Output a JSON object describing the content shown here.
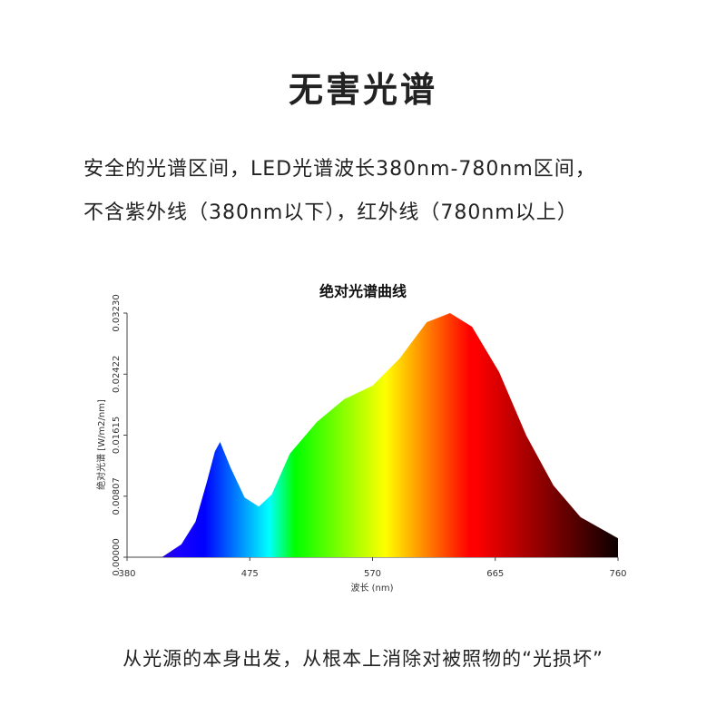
{
  "header": {
    "title": "无害光谱",
    "paragraph": [
      "安全的光谱区间，LED光谱波长380nm-780nm区间，",
      "不含紫外线（380nm以下），红外线（780nm以上）"
    ]
  },
  "chart_data": {
    "type": "area",
    "title": "绝对光谱曲线",
    "x_label": "波长 (nm)",
    "y_label": "绝对光谱 [W/m2/nm]",
    "x": [
      380,
      400,
      407,
      422,
      433,
      442,
      448,
      452,
      460,
      471,
      482,
      492,
      506,
      527,
      548,
      570,
      591,
      612,
      630,
      647,
      668,
      689,
      710,
      731,
      760
    ],
    "values": [
      0,
      0,
      0,
      0.0017,
      0.0047,
      0.0101,
      0.014,
      0.01525,
      0.0119,
      0.0079,
      0.0067,
      0.0083,
      0.0137,
      0.0179,
      0.0209,
      0.0227,
      0.0263,
      0.0311,
      0.0323,
      0.0305,
      0.0245,
      0.0161,
      0.0095,
      0.0053,
      0.0025
    ],
    "xlim": [
      380,
      760
    ],
    "xticks": [
      380,
      475,
      570,
      665,
      760
    ],
    "ylim": [
      0,
      0.0323
    ],
    "yticks": [
      {
        "value": 0,
        "label": "0.00000"
      },
      0.00807,
      0.01615,
      0.02422,
      {
        "value": 0.0323,
        "label": "0.03230"
      }
    ]
  },
  "footer": "从光源的本身出发，从根本上消除对被照物的“光损坏”"
}
